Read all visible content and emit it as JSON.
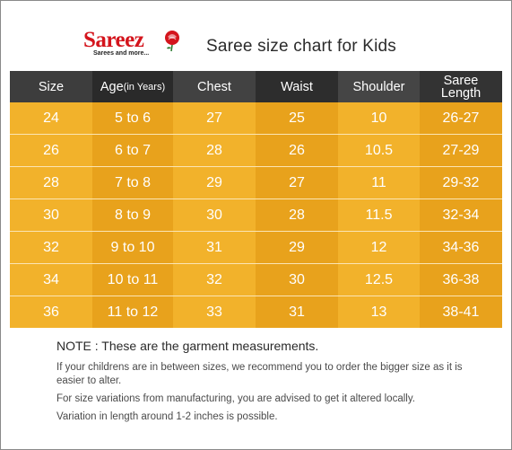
{
  "header": {
    "logo_text": "Sareez",
    "logo_tagline": "Sarees and more...",
    "title": "Saree size chart for Kids"
  },
  "table": {
    "columns": [
      {
        "label": "Size",
        "suffix": ""
      },
      {
        "label": "Age",
        "suffix": " (in Years)"
      },
      {
        "label": "Chest",
        "suffix": ""
      },
      {
        "label": "Waist",
        "suffix": ""
      },
      {
        "label": "Shoulder",
        "suffix": ""
      },
      {
        "label": "Saree",
        "suffix": "Length"
      }
    ],
    "rows": [
      [
        "24",
        "5 to 6",
        "27",
        "25",
        "10",
        "26-27"
      ],
      [
        "26",
        "6 to 7",
        "28",
        "26",
        "10.5",
        "27-29"
      ],
      [
        "28",
        "7 to 8",
        "29",
        "27",
        "11",
        "29-32"
      ],
      [
        "30",
        "8 to 9",
        "30",
        "28",
        "11.5",
        "32-34"
      ],
      [
        "32",
        "9 to 10",
        "31",
        "29",
        "12",
        "34-36"
      ],
      [
        "34",
        "10 to 11",
        "32",
        "30",
        "12.5",
        "36-38"
      ],
      [
        "36",
        "11 to 12",
        "33",
        "31",
        "13",
        "38-41"
      ]
    ]
  },
  "notes": {
    "title": "NOTE : These are the garment measurements.",
    "lines": [
      "If your childrens are in between sizes, we recommend you to order the bigger size as it is easier to alter.",
      "For size variations from manufacturing, you are advised to get it altered locally.",
      "Variation in length around 1-2 inches is possible."
    ]
  },
  "colors": {
    "header_dark": "#333333",
    "cell_light": "#f2b22b",
    "cell_dark": "#e8a21c",
    "brand_red": "#d4141c"
  }
}
